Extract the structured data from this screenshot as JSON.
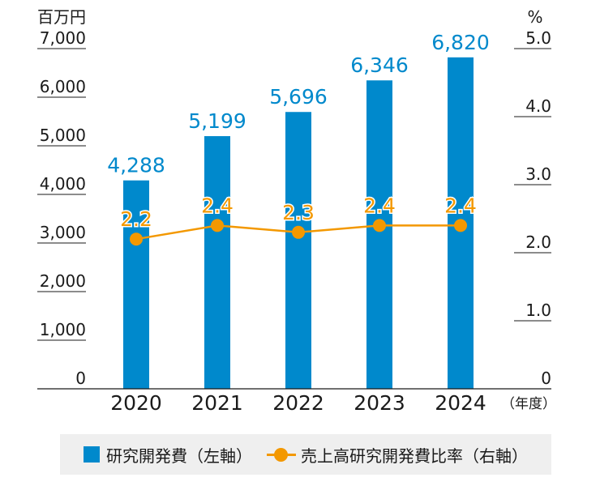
{
  "chart_data": {
    "type": "bar+line",
    "left_unit": "百万円",
    "right_unit": "%",
    "x_unit": "（年度）",
    "categories": [
      "2020",
      "2021",
      "2022",
      "2023",
      "2024"
    ],
    "left_axis": {
      "range": [
        0,
        7000
      ],
      "ticks": [
        0,
        1000,
        2000,
        3000,
        4000,
        5000,
        6000,
        7000
      ],
      "tick_labels": [
        "0",
        "1,000",
        "2,000",
        "3,000",
        "4,000",
        "5,000",
        "6,000",
        "7,000"
      ]
    },
    "right_axis": {
      "range": [
        0,
        5.0
      ],
      "ticks": [
        0,
        1.0,
        2.0,
        3.0,
        4.0,
        5.0
      ],
      "tick_labels": [
        "0",
        "1.0",
        "2.0",
        "3.0",
        "4.0",
        "5.0"
      ]
    },
    "series": [
      {
        "name": "研究開発費（左軸）",
        "type": "bar",
        "axis": "left",
        "color": "#0089cc",
        "values": [
          4288,
          5199,
          5696,
          6346,
          6820
        ],
        "labels": [
          "4,288",
          "5,199",
          "5,696",
          "6,346",
          "6,820"
        ]
      },
      {
        "name": "売上高研究開発費比率（右軸）",
        "type": "line",
        "axis": "right",
        "color": "#f39800",
        "values": [
          2.2,
          2.4,
          2.3,
          2.4,
          2.4
        ],
        "labels": [
          "2.2",
          "2.4",
          "2.3",
          "2.4",
          "2.4"
        ]
      }
    ],
    "grid": false,
    "legend_position": "bottom"
  }
}
